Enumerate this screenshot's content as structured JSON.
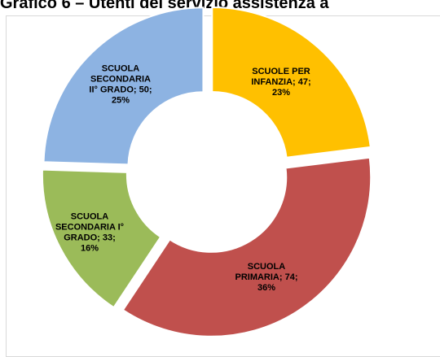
{
  "chart_data": {
    "type": "pie",
    "title": "Grafico 6 – Utenti del servizio assistenza a",
    "slices": [
      {
        "label": "SCUOLE PER INFANZIA; 47; 23%",
        "category": "SCUOLE PER INFANZIA",
        "value": 47,
        "percent": 23,
        "color": "#ffc000",
        "label_lines": [
          "SCUOLE PER",
          "INFANZIA; 47;",
          "23%"
        ]
      },
      {
        "label": "SCUOLA PRIMARIA; 74; 36%",
        "category": "SCUOLA PRIMARIA",
        "value": 74,
        "percent": 36,
        "color": "#c0504d",
        "label_lines": [
          "SCUOLA",
          "PRIMARIA; 74;",
          "36%"
        ]
      },
      {
        "label": "SCUOLA SECONDARIA I° GRADO; 33; 16%",
        "category": "SCUOLA SECONDARIA I° GRADO",
        "value": 33,
        "percent": 16,
        "color": "#9bbb59",
        "label_lines": [
          "SCUOLA",
          "SECONDARIA I°",
          "GRADO; 33;",
          "16%"
        ]
      },
      {
        "label": "SCUOLA SECONDARIA II° GRADO; 50; 25%",
        "category": "SCUOLA SECONDARIA II° GRADO",
        "value": 50,
        "percent": 25,
        "color": "#8db3e2",
        "label_lines": [
          "SCUOLA",
          "SECONDARIA",
          "II° GRADO; 50;",
          "25%"
        ]
      }
    ],
    "donut": true
  }
}
